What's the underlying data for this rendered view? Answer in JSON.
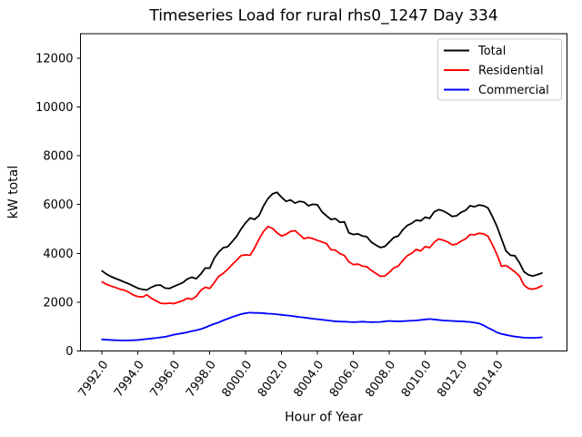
{
  "figure": {
    "background": "#ffffff"
  },
  "chart_data": {
    "type": "line",
    "title": "Timeseries Load for rural rhs0_1247  Day 334",
    "xlabel": "Hour of Year",
    "ylabel": "kW total",
    "xlim": [
      7990.8,
      8017.9
    ],
    "ylim": [
      0,
      13000
    ],
    "grid": false,
    "x_ticks": [
      {
        "value": 7992,
        "label": "7992.0"
      },
      {
        "value": 7994,
        "label": "7994.0"
      },
      {
        "value": 7996,
        "label": "7996.0"
      },
      {
        "value": 7998,
        "label": "7998.0"
      },
      {
        "value": 8000,
        "label": "8000.0"
      },
      {
        "value": 8002,
        "label": "8002.0"
      },
      {
        "value": 8004,
        "label": "8004.0"
      },
      {
        "value": 8006,
        "label": "8006.0"
      },
      {
        "value": 8008,
        "label": "8008.0"
      },
      {
        "value": 8010,
        "label": "8010.0"
      },
      {
        "value": 8012,
        "label": "8012.0"
      },
      {
        "value": 8014,
        "label": "8014.0"
      }
    ],
    "x_tick_rotation_deg": 54,
    "y_ticks": [
      {
        "value": 0,
        "label": "0"
      },
      {
        "value": 2000,
        "label": "2000"
      },
      {
        "value": 4000,
        "label": "4000"
      },
      {
        "value": 6000,
        "label": "6000"
      },
      {
        "value": 8000,
        "label": "8000"
      },
      {
        "value": 10000,
        "label": "10000"
      },
      {
        "value": 12000,
        "label": "12000"
      }
    ],
    "legend": {
      "position": "upper right"
    },
    "x": [
      7992.0,
      7992.25,
      7992.5,
      7992.75,
      7993.0,
      7993.25,
      7993.5,
      7993.75,
      7994.0,
      7994.25,
      7994.5,
      7994.75,
      7995.0,
      7995.25,
      7995.5,
      7995.75,
      7996.0,
      7996.25,
      7996.5,
      7996.75,
      7997.0,
      7997.25,
      7997.5,
      7997.75,
      7998.0,
      7998.25,
      7998.5,
      7998.75,
      7999.0,
      7999.25,
      7999.5,
      7999.75,
      8000.0,
      8000.25,
      8000.5,
      8000.75,
      8001.0,
      8001.25,
      8001.5,
      8001.75,
      8002.0,
      8002.25,
      8002.5,
      8002.75,
      8003.0,
      8003.25,
      8003.5,
      8003.75,
      8004.0,
      8004.25,
      8004.5,
      8004.75,
      8005.0,
      8005.25,
      8005.5,
      8005.75,
      8006.0,
      8006.25,
      8006.5,
      8006.75,
      8007.0,
      8007.25,
      8007.5,
      8007.75,
      8008.0,
      8008.25,
      8008.5,
      8008.75,
      8009.0,
      8009.25,
      8009.5,
      8009.75,
      8010.0,
      8010.25,
      8010.5,
      8010.75,
      8011.0,
      8011.25,
      8011.5,
      8011.75,
      8012.0,
      8012.25,
      8012.5,
      8012.75,
      8013.0,
      8013.25,
      8013.5,
      8013.75,
      8014.0,
      8014.25,
      8014.5,
      8014.75,
      8015.0,
      8015.25,
      8015.5,
      8015.75,
      8016.0,
      8016.25,
      8016.5
    ],
    "series": [
      {
        "name": "Total",
        "color": "#000000",
        "values": [
          3280,
          3150,
          3050,
          2970,
          2900,
          2820,
          2750,
          2660,
          2570,
          2520,
          2500,
          2610,
          2690,
          2700,
          2580,
          2560,
          2640,
          2720,
          2800,
          2950,
          3020,
          2960,
          3150,
          3400,
          3390,
          3800,
          4050,
          4230,
          4270,
          4480,
          4700,
          5000,
          5250,
          5450,
          5390,
          5550,
          5950,
          6250,
          6440,
          6500,
          6300,
          6130,
          6190,
          6060,
          6130,
          6100,
          5950,
          6010,
          5990,
          5700,
          5540,
          5390,
          5420,
          5270,
          5290,
          4840,
          4770,
          4800,
          4710,
          4680,
          4460,
          4340,
          4240,
          4280,
          4460,
          4650,
          4710,
          4960,
          5140,
          5230,
          5360,
          5330,
          5480,
          5430,
          5700,
          5790,
          5740,
          5640,
          5510,
          5540,
          5680,
          5760,
          5950,
          5910,
          5980,
          5950,
          5860,
          5500,
          5100,
          4600,
          4100,
          3920,
          3900,
          3620,
          3250,
          3120,
          3070,
          3130,
          3190
        ]
      },
      {
        "name": "Residential",
        "color": "#ff0000",
        "values": [
          2830,
          2730,
          2660,
          2600,
          2530,
          2490,
          2400,
          2290,
          2230,
          2210,
          2300,
          2160,
          2060,
          1960,
          1940,
          1960,
          1940,
          2000,
          2060,
          2160,
          2120,
          2240,
          2480,
          2610,
          2560,
          2800,
          3060,
          3180,
          3350,
          3540,
          3720,
          3910,
          3940,
          3920,
          4220,
          4590,
          4900,
          5100,
          5020,
          4840,
          4710,
          4780,
          4900,
          4930,
          4770,
          4600,
          4650,
          4600,
          4530,
          4470,
          4400,
          4150,
          4130,
          3990,
          3910,
          3650,
          3540,
          3560,
          3480,
          3450,
          3300,
          3180,
          3060,
          3070,
          3220,
          3400,
          3480,
          3700,
          3900,
          4000,
          4160,
          4100,
          4280,
          4230,
          4450,
          4590,
          4540,
          4470,
          4350,
          4380,
          4500,
          4590,
          4770,
          4760,
          4820,
          4800,
          4700,
          4350,
          3950,
          3470,
          3500,
          3380,
          3240,
          3070,
          2700,
          2560,
          2530,
          2580,
          2670
        ]
      },
      {
        "name": "Commercial",
        "color": "#0000ff",
        "values": [
          470,
          460,
          450,
          440,
          435,
          430,
          435,
          440,
          450,
          470,
          490,
          510,
          530,
          555,
          580,
          620,
          665,
          700,
          730,
          765,
          810,
          850,
          895,
          960,
          1040,
          1110,
          1170,
          1250,
          1320,
          1390,
          1450,
          1510,
          1550,
          1570,
          1560,
          1560,
          1545,
          1530,
          1520,
          1500,
          1480,
          1460,
          1440,
          1415,
          1390,
          1370,
          1345,
          1320,
          1300,
          1280,
          1260,
          1235,
          1215,
          1205,
          1200,
          1190,
          1180,
          1190,
          1200,
          1190,
          1180,
          1185,
          1190,
          1210,
          1230,
          1220,
          1215,
          1220,
          1230,
          1240,
          1250,
          1270,
          1290,
          1310,
          1290,
          1270,
          1250,
          1240,
          1230,
          1220,
          1215,
          1200,
          1190,
          1160,
          1130,
          1050,
          950,
          860,
          760,
          700,
          660,
          620,
          590,
          570,
          545,
          540,
          535,
          545,
          560
        ]
      }
    ]
  }
}
